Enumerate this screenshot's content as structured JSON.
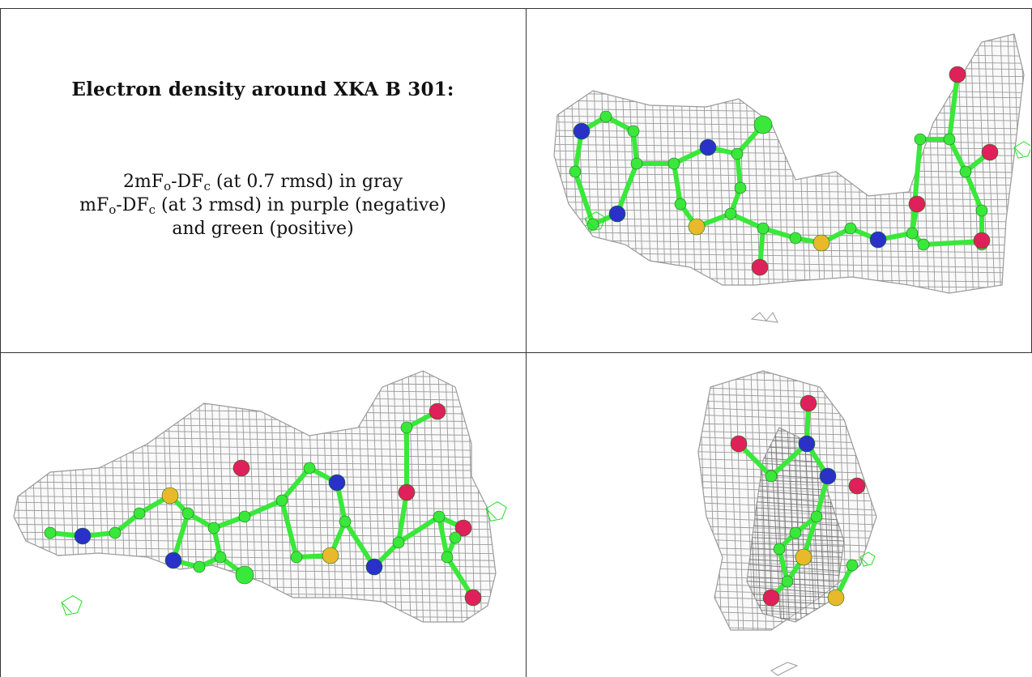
{
  "panel_text": {
    "title": "Electron density around XKA B 301:",
    "line1": {
      "a": "2mF",
      "sub1": "o",
      "b": "-DF",
      "sub2": "c",
      "c": " (at 0.7 rmsd) in gray"
    },
    "line2": {
      "a": "mF",
      "sub1": "o",
      "b": "-DF",
      "sub2": "c",
      "c": " (at 3 rmsd) in purple (negative)"
    },
    "line3": "and green (positive)"
  },
  "colors": {
    "mesh": "#9a9a9a",
    "carbon": "#39e83a",
    "nitrogen": "#2a31c8",
    "oxygen": "#e0205a",
    "sulfur": "#e7b92b",
    "chlorine": "#39e83a",
    "diff_positive": "#22dd22"
  },
  "panels": [
    {
      "name": "view-1",
      "description_icon": "electron-density-mesh"
    },
    {
      "name": "view-2",
      "description_icon": "electron-density-mesh"
    },
    {
      "name": "view-3",
      "description_icon": "electron-density-mesh"
    }
  ]
}
